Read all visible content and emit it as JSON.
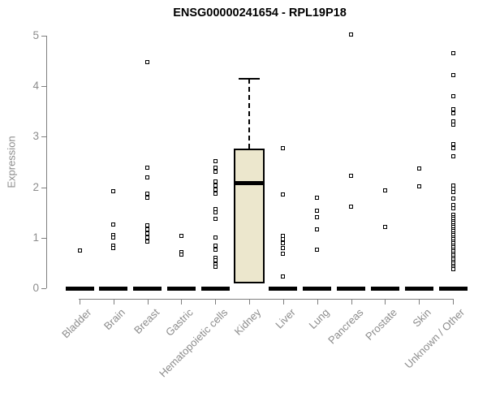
{
  "chart_data": {
    "type": "boxplot",
    "title": "ENSG00000241654 - RPL19P18",
    "ylabel": "Expression",
    "ylim": [
      0,
      5
    ],
    "yticks": [
      0,
      1,
      2,
      3,
      4,
      5
    ],
    "grid": false,
    "legend": "none",
    "box_fill": "#ECE7CD",
    "axis_color": "#8C8C8C",
    "point_color": "#000000",
    "categories": [
      "Bladder",
      "Brain",
      "Breast",
      "Gastric",
      "Hematopoietic cells",
      "Kidney",
      "Liver",
      "Lung",
      "Pancreas",
      "Prostate",
      "Skin",
      "Unknown / Other"
    ],
    "series": [
      {
        "category": "Bladder",
        "box": {
          "q1": 0,
          "median": 0,
          "q3": 0
        },
        "outliers": [
          0.74
        ]
      },
      {
        "category": "Brain",
        "box": {
          "q1": 0,
          "median": 0,
          "q3": 0
        },
        "outliers": [
          1.92,
          1.26,
          1.06,
          1.0,
          0.85,
          0.79
        ]
      },
      {
        "category": "Breast",
        "box": {
          "q1": 0,
          "median": 0,
          "q3": 0
        },
        "outliers": [
          4.48,
          2.38,
          2.2,
          1.88,
          1.79,
          1.25,
          1.17,
          1.08,
          1.0,
          0.92
        ]
      },
      {
        "category": "Gastric",
        "box": {
          "q1": 0,
          "median": 0,
          "q3": 0
        },
        "outliers": [
          1.04,
          0.72,
          0.67
        ]
      },
      {
        "category": "Hematopoietic cells",
        "box": {
          "q1": 0,
          "median": 0,
          "q3": 0
        },
        "outliers": [
          2.52,
          2.38,
          2.3,
          2.12,
          2.04,
          1.96,
          1.88,
          1.56,
          1.5,
          1.37,
          1.0,
          0.84,
          0.76,
          0.61,
          0.55,
          0.48,
          0.42
        ]
      },
      {
        "category": "Kidney",
        "box": {
          "q1": 0.1,
          "median": 2.08,
          "q3": 2.77,
          "whisker_high": 4.15
        },
        "outliers": []
      },
      {
        "category": "Liver",
        "box": {
          "q1": 0,
          "median": 0,
          "q3": 0
        },
        "outliers": [
          2.77,
          1.86,
          1.04,
          0.97,
          0.9,
          0.8,
          0.69,
          0.24
        ]
      },
      {
        "category": "Lung",
        "box": {
          "q1": 0,
          "median": 0,
          "q3": 0
        },
        "outliers": [
          1.8,
          1.54,
          1.4,
          1.17,
          0.77
        ]
      },
      {
        "category": "Pancreas",
        "box": {
          "q1": 0,
          "median": 0,
          "q3": 0
        },
        "outliers": [
          5.02,
          2.22,
          1.62
        ]
      },
      {
        "category": "Prostate",
        "box": {
          "q1": 0,
          "median": 0,
          "q3": 0
        },
        "outliers": [
          1.93,
          1.21
        ]
      },
      {
        "category": "Skin",
        "box": {
          "q1": 0,
          "median": 0,
          "q3": 0
        },
        "outliers": [
          2.37,
          2.02
        ]
      },
      {
        "category": "Unknown / Other",
        "box": {
          "q1": 0,
          "median": 0,
          "q3": 0
        },
        "outliers": [
          4.65,
          4.22,
          3.81,
          3.54,
          3.47,
          3.3,
          3.24,
          2.85,
          2.78,
          2.62,
          2.04,
          1.97,
          1.9,
          1.77,
          1.64,
          1.58,
          1.45,
          1.41,
          1.37,
          1.33,
          1.29,
          1.25,
          1.21,
          1.17,
          1.13,
          1.09,
          1.05,
          1.01,
          0.97,
          0.93,
          0.89,
          0.85,
          0.81,
          0.77,
          0.73,
          0.69,
          0.65,
          0.61,
          0.57,
          0.53,
          0.49,
          0.45,
          0.41,
          0.37
        ]
      }
    ]
  }
}
